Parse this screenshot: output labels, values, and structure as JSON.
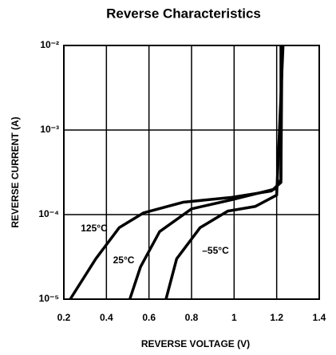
{
  "chart_data": {
    "type": "line",
    "title": "Reverse Characteristics",
    "xlabel": "REVERSE VOLTAGE (V)",
    "ylabel": "REVERSE CURRENT (A)",
    "xlim": [
      0.2,
      1.4
    ],
    "xticks": [
      0.2,
      0.4,
      0.6,
      0.8,
      1.0,
      1.2,
      1.4
    ],
    "ylim": [
      1e-05,
      0.01
    ],
    "ylog": true,
    "grid": true,
    "yticks": [
      {
        "value": 1e-05,
        "label": "10⁻⁵"
      },
      {
        "value": 0.0001,
        "label": "10⁻⁴"
      },
      {
        "value": 0.001,
        "label": "10⁻³"
      },
      {
        "value": 0.01,
        "label": "10⁻²"
      }
    ],
    "series": [
      {
        "name": "125°C",
        "color": "#000000",
        "x": [
          0.23,
          0.35,
          0.46,
          0.575,
          0.76,
          0.99,
          1.175,
          1.22,
          1.22
        ],
        "values": [
          1e-05,
          3e-05,
          7e-05,
          0.000105,
          0.00014,
          0.00016,
          0.00019,
          0.00024,
          0.01
        ]
      },
      {
        "name": "25°C",
        "color": "#000000",
        "x": [
          0.51,
          0.56,
          0.65,
          0.8,
          0.99,
          1.19,
          1.22,
          1.225
        ],
        "values": [
          1e-05,
          2.4e-05,
          6.3e-05,
          0.000117,
          0.00015,
          0.0002,
          0.00026,
          0.01
        ]
      },
      {
        "name": "–55°C",
        "color": "#000000",
        "x": [
          0.68,
          0.73,
          0.84,
          0.97,
          1.1,
          1.2,
          1.23
        ],
        "values": [
          1e-05,
          3e-05,
          7e-05,
          0.00011,
          0.000125,
          0.00017,
          0.01
        ]
      }
    ]
  }
}
